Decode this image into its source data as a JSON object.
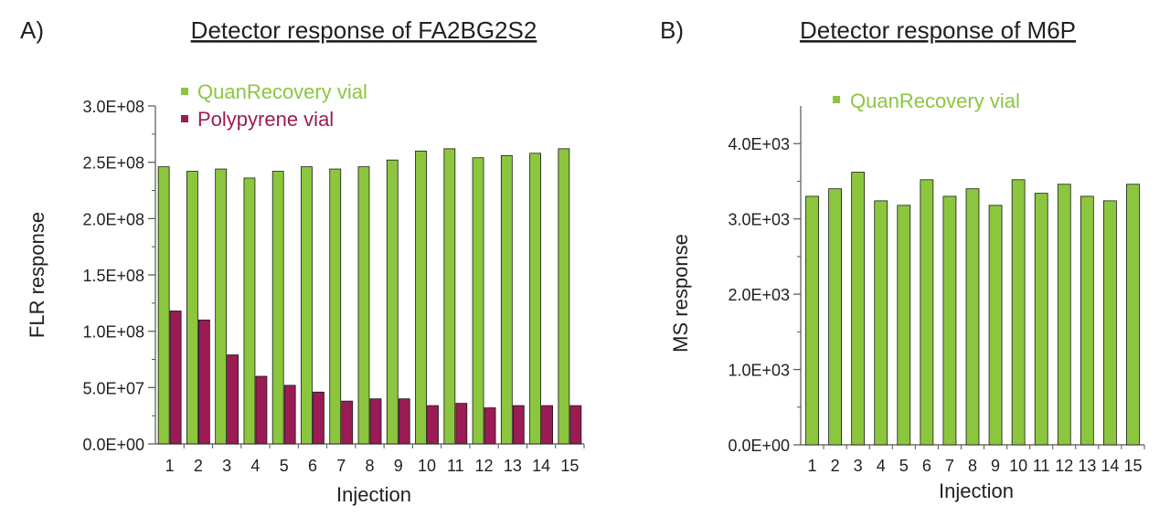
{
  "colors": {
    "green": "#8cc63f",
    "maroon": "#9b1c54",
    "axis": "#555555",
    "text": "#231f20",
    "edge": "#1a1a1a"
  },
  "chart_data": [
    {
      "panel_label": "A)",
      "type": "bar",
      "title": "Detector response of FA2BG2S2",
      "xlabel": "Injection",
      "ylabel": "FLR response",
      "categories": [
        "1",
        "2",
        "3",
        "4",
        "5",
        "6",
        "7",
        "8",
        "9",
        "10",
        "11",
        "12",
        "13",
        "14",
        "15"
      ],
      "ylim": [
        0,
        300000000
      ],
      "yticks": [
        0,
        50000000,
        100000000,
        150000000,
        200000000,
        250000000,
        300000000
      ],
      "ytick_labels": [
        "0.0E+00",
        "5.0E+07",
        "1.0E+08",
        "1.5E+08",
        "2.0E+08",
        "2.5E+08",
        "3.0E+08"
      ],
      "legend_position": "top-left",
      "series": [
        {
          "name": "QuanRecovery vial",
          "color": "#8cc63f",
          "values": [
            246000000,
            242000000,
            244000000,
            236000000,
            242000000,
            246000000,
            244000000,
            246000000,
            252000000,
            260000000,
            262000000,
            254000000,
            256000000,
            258000000,
            262000000
          ]
        },
        {
          "name": "Polypyrene vial",
          "color": "#9b1c54",
          "values": [
            118000000,
            110000000,
            79000000,
            60000000,
            52000000,
            46000000,
            38000000,
            40000000,
            40000000,
            34000000,
            36000000,
            32000000,
            34000000,
            34000000,
            34000000
          ]
        }
      ]
    },
    {
      "panel_label": "B)",
      "type": "bar",
      "title": "Detector response of M6P",
      "xlabel": "Injection",
      "ylabel": "MS response",
      "categories": [
        "1",
        "2",
        "3",
        "4",
        "5",
        "6",
        "7",
        "8",
        "9",
        "10",
        "11",
        "12",
        "13",
        "14",
        "15"
      ],
      "ylim": [
        0,
        4500
      ],
      "yticks": [
        0,
        1000,
        2000,
        3000,
        4000
      ],
      "ytick_labels": [
        "0.0E+00",
        "1.0E+03",
        "2.0E+03",
        "3.0E+03",
        "4.0E+03"
      ],
      "legend_position": "top-left",
      "series": [
        {
          "name": "QuanRecovery vial",
          "color": "#8cc63f",
          "values": [
            3300,
            3400,
            3620,
            3240,
            3180,
            3520,
            3300,
            3400,
            3180,
            3520,
            3340,
            3460,
            3300,
            3240,
            3460
          ]
        }
      ]
    }
  ]
}
